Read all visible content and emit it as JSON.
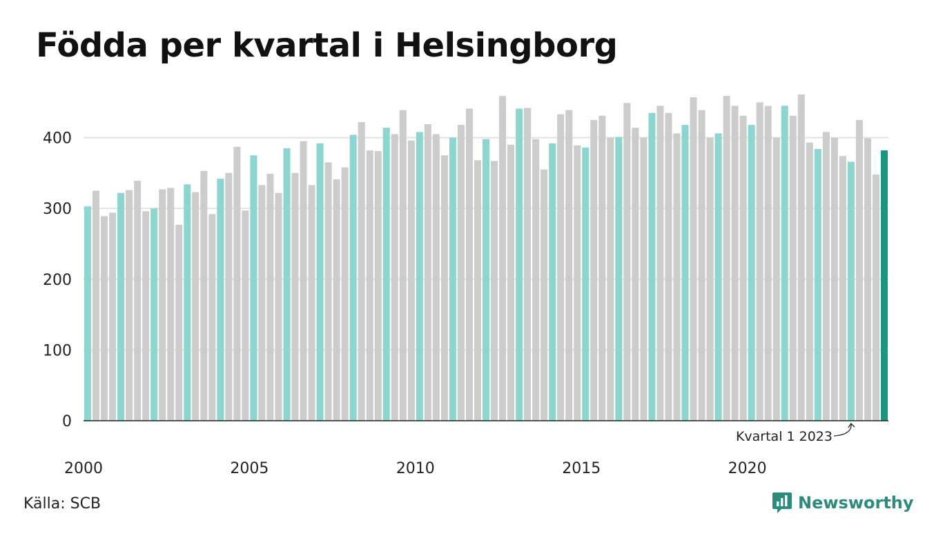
{
  "title": "Födda per kvartal i Helsingborg",
  "source": "Källa: SCB",
  "brand": "Newsworthy",
  "icons": {
    "brand_logo": "chart-logo-icon"
  },
  "colors": {
    "q1": "#8dd6cf",
    "other": "#cccccc",
    "latest": "#1a9582",
    "grid": "#e2e2e2",
    "axis": "#222222",
    "brand": "#2d8a7e"
  },
  "chart_data": {
    "type": "bar",
    "xlabel": "",
    "ylabel": "",
    "ylim": [
      0,
      460
    ],
    "yticks": [
      0,
      100,
      200,
      300,
      400
    ],
    "xtick_labels": [
      "2000",
      "2005",
      "2010",
      "2015",
      "2020"
    ],
    "xtick_years": [
      2000,
      2005,
      2010,
      2015,
      2020
    ],
    "grid": true,
    "highlight": "Q1 bars in teal, latest quarter in dark teal",
    "annotation": {
      "text": "Kvartal 1 2023",
      "target": "2023 Q1"
    },
    "categories": [
      "2000 Q1",
      "2000 Q2",
      "2000 Q3",
      "2000 Q4",
      "2001 Q1",
      "2001 Q2",
      "2001 Q3",
      "2001 Q4",
      "2002 Q1",
      "2002 Q2",
      "2002 Q3",
      "2002 Q4",
      "2003 Q1",
      "2003 Q2",
      "2003 Q3",
      "2003 Q4",
      "2004 Q1",
      "2004 Q2",
      "2004 Q3",
      "2004 Q4",
      "2005 Q1",
      "2005 Q2",
      "2005 Q3",
      "2005 Q4",
      "2006 Q1",
      "2006 Q2",
      "2006 Q3",
      "2006 Q4",
      "2007 Q1",
      "2007 Q2",
      "2007 Q3",
      "2007 Q4",
      "2008 Q1",
      "2008 Q2",
      "2008 Q3",
      "2008 Q4",
      "2009 Q1",
      "2009 Q2",
      "2009 Q3",
      "2009 Q4",
      "2010 Q1",
      "2010 Q2",
      "2010 Q3",
      "2010 Q4",
      "2011 Q1",
      "2011 Q2",
      "2011 Q3",
      "2011 Q4",
      "2012 Q1",
      "2012 Q2",
      "2012 Q3",
      "2012 Q4",
      "2013 Q1",
      "2013 Q2",
      "2013 Q3",
      "2013 Q4",
      "2014 Q1",
      "2014 Q2",
      "2014 Q3",
      "2014 Q4",
      "2015 Q1",
      "2015 Q2",
      "2015 Q3",
      "2015 Q4",
      "2016 Q1",
      "2016 Q2",
      "2016 Q3",
      "2016 Q4",
      "2017 Q1",
      "2017 Q2",
      "2017 Q3",
      "2017 Q4",
      "2018 Q1",
      "2018 Q2",
      "2018 Q3",
      "2018 Q4",
      "2019 Q1",
      "2019 Q2",
      "2019 Q3",
      "2019 Q4",
      "2020 Q1",
      "2020 Q2",
      "2020 Q3",
      "2020 Q4",
      "2021 Q1",
      "2021 Q2",
      "2021 Q3",
      "2021 Q4",
      "2022 Q1",
      "2022 Q2",
      "2022 Q3",
      "2022 Q4",
      "2023 Q1",
      "2023 Q2",
      "2023 Q3",
      "2023 Q4",
      "2024 Q1"
    ],
    "values": [
      303,
      325,
      289,
      294,
      322,
      326,
      339,
      296,
      300,
      327,
      329,
      277,
      334,
      323,
      353,
      292,
      342,
      350,
      387,
      297,
      375,
      333,
      349,
      322,
      385,
      350,
      395,
      333,
      392,
      365,
      341,
      358,
      404,
      422,
      382,
      381,
      414,
      405,
      439,
      396,
      408,
      419,
      405,
      375,
      400,
      418,
      441,
      368,
      398,
      367,
      459,
      390,
      441,
      442,
      398,
      355,
      392,
      433,
      439,
      389,
      386,
      425,
      431,
      400,
      401,
      449,
      414,
      400,
      435,
      445,
      435,
      406,
      418,
      457,
      439,
      400,
      406,
      459,
      445,
      431,
      418,
      450,
      445,
      400,
      445,
      431,
      461,
      393,
      384,
      408,
      400,
      374,
      366,
      425,
      399,
      348,
      382
    ]
  }
}
